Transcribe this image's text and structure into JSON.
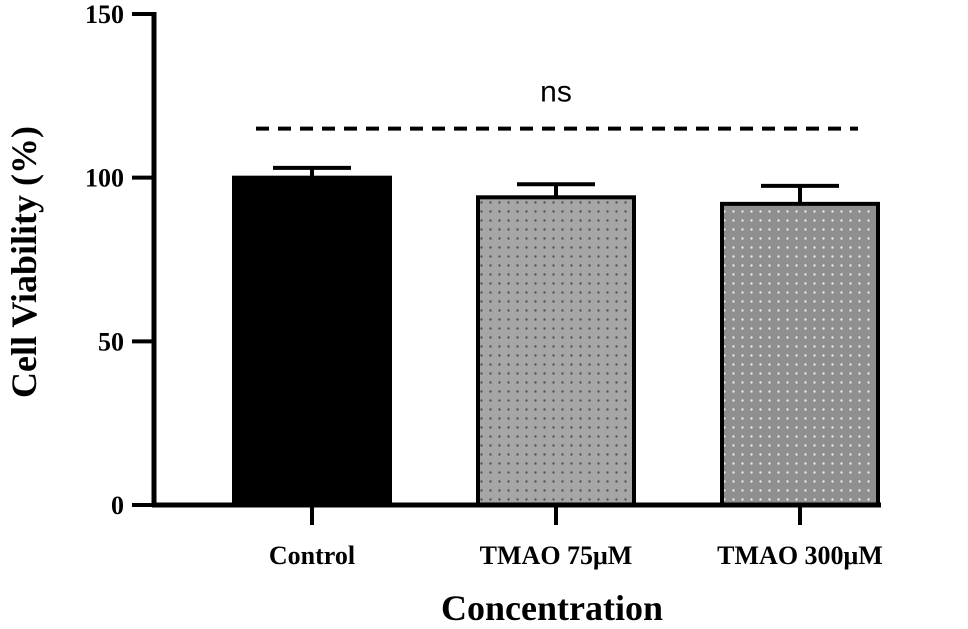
{
  "chart_data": {
    "type": "bar",
    "categories": [
      "Control",
      "TMAO 75μM",
      "TMAO 300μM"
    ],
    "values": [
      100,
      94,
      92
    ],
    "errors": [
      3,
      4,
      5.5
    ],
    "fills": [
      "#000000",
      "#a6a6a6",
      "#8f8f8f"
    ],
    "patterns": [
      "none",
      "dots",
      "dots-white"
    ],
    "xlabel": "Concentration",
    "ylabel": "Cell Viability (%)",
    "ylim": [
      0,
      150
    ],
    "yticks": [
      0,
      50,
      100,
      150
    ],
    "yticklabels": [
      "0",
      "50",
      "100",
      "150"
    ],
    "annotation": {
      "text": "ns",
      "y": 115
    }
  }
}
